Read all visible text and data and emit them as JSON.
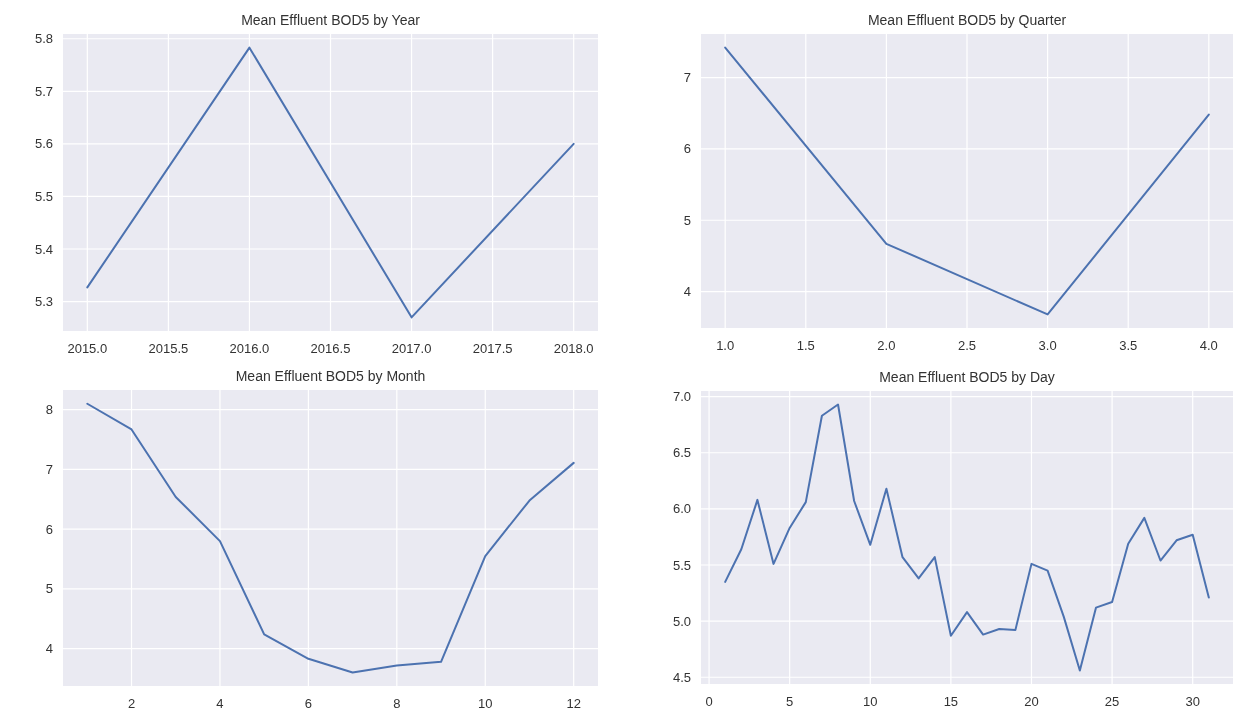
{
  "chart_data": [
    {
      "type": "line",
      "title": "Mean Effluent BOD5 by Year",
      "x": [
        2015,
        2016,
        2017,
        2018
      ],
      "series": [
        {
          "color": "#4c72b0",
          "values": [
            5.327,
            5.783,
            5.27,
            5.6
          ]
        }
      ],
      "xlim": [
        2014.85,
        2018.15
      ],
      "xticks": [
        {
          "value": 2015,
          "label": "2015.0"
        },
        2015.5,
        {
          "value": 2016,
          "label": "2016.0"
        },
        2016.5,
        {
          "value": 2017,
          "label": "2017.0"
        },
        2017.5,
        {
          "value": 2018,
          "label": "2018.0"
        }
      ],
      "ylim": [
        5.244,
        5.809
      ],
      "yticks": [
        5.3,
        5.4,
        5.5,
        5.6,
        5.7,
        5.8
      ],
      "grid": true
    },
    {
      "type": "line",
      "title": "Mean Effluent BOD5 by Quarter",
      "x": [
        1,
        2,
        3,
        4
      ],
      "series": [
        {
          "color": "#4c72b0",
          "values": [
            7.42,
            4.67,
            3.68,
            6.48
          ]
        }
      ],
      "xlim": [
        0.85,
        4.15
      ],
      "xticks": [
        {
          "value": 1,
          "label": "1.0"
        },
        1.5,
        {
          "value": 2,
          "label": "2.0"
        },
        2.5,
        {
          "value": 3,
          "label": "3.0"
        },
        3.5,
        {
          "value": 4,
          "label": "4.0"
        }
      ],
      "ylim": [
        3.49,
        7.61
      ],
      "yticks": [
        4,
        5,
        6,
        7
      ],
      "grid": true
    },
    {
      "type": "line",
      "title": "Mean Effluent BOD5 by Month",
      "x": [
        1,
        2,
        3,
        4,
        5,
        6,
        7,
        8,
        9,
        10,
        11,
        12
      ],
      "series": [
        {
          "color": "#4c72b0",
          "values": [
            8.1,
            7.67,
            6.54,
            5.8,
            4.24,
            3.83,
            3.6,
            3.72,
            3.78,
            5.55,
            6.48,
            7.11
          ]
        }
      ],
      "xlim": [
        0.45,
        12.55
      ],
      "xticks": [
        2,
        4,
        6,
        8,
        10,
        12
      ],
      "ylim": [
        3.375,
        8.33
      ],
      "yticks": [
        4,
        5,
        6,
        7,
        8
      ],
      "grid": true
    },
    {
      "type": "line",
      "title": "Mean Effluent BOD5 by Day",
      "x": [
        1,
        2,
        3,
        4,
        5,
        6,
        7,
        8,
        9,
        10,
        11,
        12,
        13,
        14,
        15,
        16,
        17,
        18,
        19,
        20,
        21,
        22,
        23,
        24,
        25,
        26,
        27,
        28,
        29,
        30,
        31
      ],
      "series": [
        {
          "color": "#4c72b0",
          "values": [
            5.35,
            5.64,
            6.08,
            5.51,
            5.83,
            6.06,
            6.83,
            6.93,
            6.07,
            5.68,
            6.18,
            5.57,
            5.38,
            5.57,
            4.87,
            5.08,
            4.88,
            4.93,
            4.92,
            5.51,
            5.45,
            5.04,
            4.56,
            5.12,
            5.17,
            5.69,
            5.92,
            5.54,
            5.72,
            5.77,
            5.21
          ]
        }
      ],
      "xlim": [
        -0.5,
        32.5
      ],
      "xticks": [
        0,
        5,
        10,
        15,
        20,
        25,
        30
      ],
      "ylim": [
        4.44,
        7.05
      ],
      "yticks": [
        {
          "value": 4.5,
          "label": "4.5"
        },
        {
          "value": 5,
          "label": "5.0"
        },
        5.5,
        {
          "value": 6,
          "label": "6.0"
        },
        6.5,
        {
          "value": 7,
          "label": "7.0"
        }
      ],
      "grid": true
    }
  ]
}
